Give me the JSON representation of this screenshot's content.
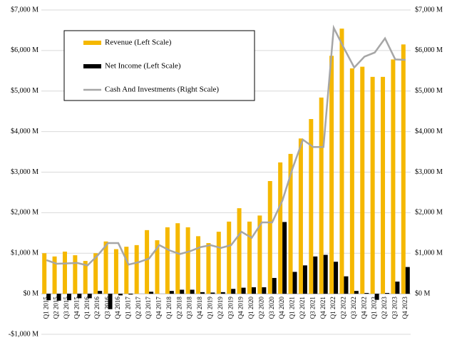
{
  "chart_data": {
    "type": "bar_line",
    "categories": [
      "Q1 2015",
      "Q2 2015",
      "Q3 2015",
      "Q4 2015",
      "Q1 2016",
      "Q2 2016",
      "Q3 2016",
      "Q4 2016",
      "Q1 2017",
      "Q2 2017",
      "Q3 2017",
      "Q4 2017",
      "Q1 2018",
      "Q2 2018",
      "Q3 2018",
      "Q4 2018",
      "Q1 2019",
      "Q2 2019",
      "Q3 2019",
      "Q4 2019",
      "Q1 2020",
      "Q2 2020",
      "Q3 2020",
      "Q4 2020",
      "Q1 2021",
      "Q2 2021",
      "Q3 2021",
      "Q4 2021",
      "Q1 2022",
      "Q2 2022",
      "Q3 2022",
      "Q4 2022",
      "Q1 2023",
      "Q2 2023",
      "Q3 2023",
      "Q4 2023"
    ],
    "series": [
      {
        "name": "Revenue (Left Scale)",
        "type": "bar",
        "color": "#f5b800",
        "values": [
          1000,
          920,
          1040,
          950,
          810,
          1000,
          1290,
          1100,
          1160,
          1200,
          1570,
          1320,
          1640,
          1740,
          1640,
          1420,
          1250,
          1530,
          1780,
          2110,
          1780,
          1930,
          2780,
          3240,
          3450,
          3830,
          4310,
          4840,
          5870,
          6540,
          5560,
          5600,
          5350,
          5350,
          5780,
          6150
        ]
      },
      {
        "name": "Net Income (Left Scale)",
        "type": "bar",
        "color": "#000000",
        "values": [
          -160,
          -170,
          -160,
          -110,
          -110,
          70,
          -380,
          -40,
          -20,
          0,
          50,
          0,
          70,
          100,
          100,
          40,
          30,
          40,
          120,
          150,
          160,
          160,
          390,
          1770,
          540,
          700,
          920,
          960,
          790,
          430,
          70,
          20,
          -150,
          20,
          300,
          660
        ]
      },
      {
        "name": "Cash And Investments (Right Scale)",
        "type": "line",
        "axis": "y2",
        "color": "#a6a6a6",
        "values": [
          830,
          740,
          750,
          760,
          700,
          950,
          1250,
          1250,
          720,
          780,
          870,
          1200,
          1070,
          980,
          1050,
          1150,
          1200,
          1130,
          1200,
          1530,
          1380,
          1760,
          1760,
          2300,
          3100,
          3800,
          3620,
          3620,
          6560,
          6060,
          5580,
          5850,
          5950,
          6300,
          5780,
          5770
        ]
      }
    ],
    "ylim": [
      -1000,
      7000
    ],
    "yticks": [
      {
        "value": -1000,
        "label": "-$1,000 M"
      },
      {
        "value": 0,
        "label": "$0 M"
      },
      {
        "value": 1000,
        "label": "$1,000 M"
      },
      {
        "value": 2000,
        "label": "$2,000 M"
      },
      {
        "value": 3000,
        "label": "$3,000 M"
      },
      {
        "value": 4000,
        "label": "$4,000 M"
      },
      {
        "value": 5000,
        "label": "$5,000 M"
      },
      {
        "value": 6000,
        "label": "$6,000 M"
      },
      {
        "value": 7000,
        "label": "$7,000 M"
      }
    ],
    "y2lim": [
      -1000,
      7000
    ],
    "y2ticks": [
      {
        "value": 0,
        "label": "$0 M"
      },
      {
        "value": 1000,
        "label": "$1,000 M"
      },
      {
        "value": 2000,
        "label": "$2,000 M"
      },
      {
        "value": 3000,
        "label": "$3,000 M"
      },
      {
        "value": 4000,
        "label": "$4,000 M"
      },
      {
        "value": 5000,
        "label": "$5,000 M"
      },
      {
        "value": 6000,
        "label": "$6,000 M"
      },
      {
        "value": 7000,
        "label": "$7,000 M"
      }
    ],
    "grid": true,
    "legend": "upper left"
  }
}
